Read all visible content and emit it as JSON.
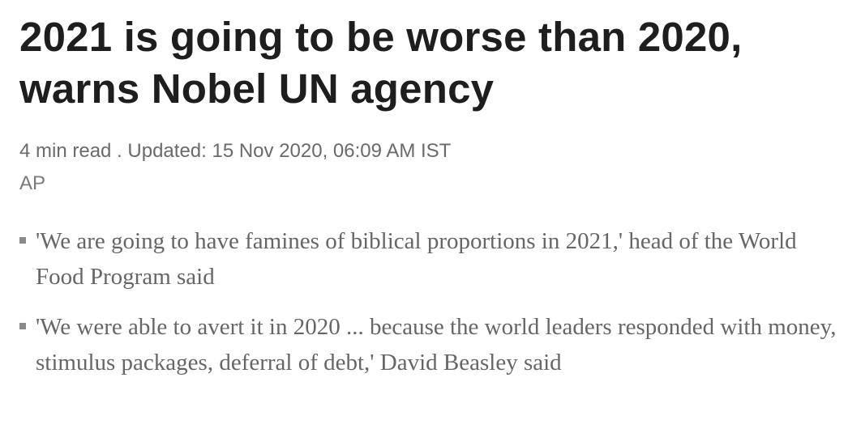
{
  "article": {
    "headline": "2021 is going to be worse than 2020, warns Nobel UN agency",
    "read_time": "4 min read",
    "separator": " . ",
    "updated_label": "Updated: ",
    "updated_time": "15 Nov 2020, 06:09 AM IST",
    "byline": "AP",
    "highlights": [
      "'We are going to have famines of biblical proportions in 2021,' head of the World Food Program said",
      "'We were able to avert it in 2020 ... because the world leaders responded with money, stimulus packages, deferral of debt,' David Beasley said"
    ]
  },
  "colors": {
    "headline": "#1e1e1e",
    "meta": "#6a6a6a",
    "body": "#666666",
    "bullet": "#8a8a8a"
  }
}
